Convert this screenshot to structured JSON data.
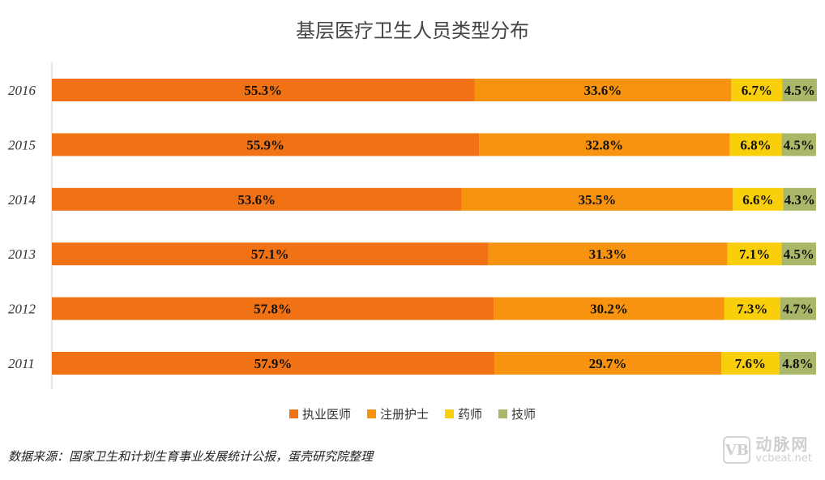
{
  "chart_data": {
    "type": "bar",
    "orientation": "horizontal",
    "stacked": "percent",
    "title": "基层医疗卫生人员类型分布",
    "categories": [
      "2016",
      "2015",
      "2014",
      "2013",
      "2012",
      "2011"
    ],
    "series": [
      {
        "name": "执业医师",
        "color": "#F07214",
        "values": [
          55.3,
          55.9,
          53.6,
          57.1,
          57.8,
          57.9
        ]
      },
      {
        "name": "注册护士",
        "color": "#F7930F",
        "values": [
          33.6,
          32.8,
          35.5,
          31.3,
          30.2,
          29.7
        ]
      },
      {
        "name": "药师",
        "color": "#F9CE0A",
        "values": [
          6.7,
          6.8,
          6.6,
          7.1,
          7.3,
          7.6
        ]
      },
      {
        "name": "技师",
        "color": "#A9B868",
        "values": [
          4.5,
          4.5,
          4.3,
          4.5,
          4.7,
          4.8
        ]
      }
    ],
    "xlim": [
      0,
      100
    ],
    "legend_position": "bottom",
    "grid": false
  },
  "footer": {
    "source": "数据来源：国家卫生和计划生育事业发展统计公报，蛋壳研究院整理"
  },
  "watermark": {
    "logo": "VB",
    "name": "动脉网",
    "url": "vcbeat.net"
  }
}
